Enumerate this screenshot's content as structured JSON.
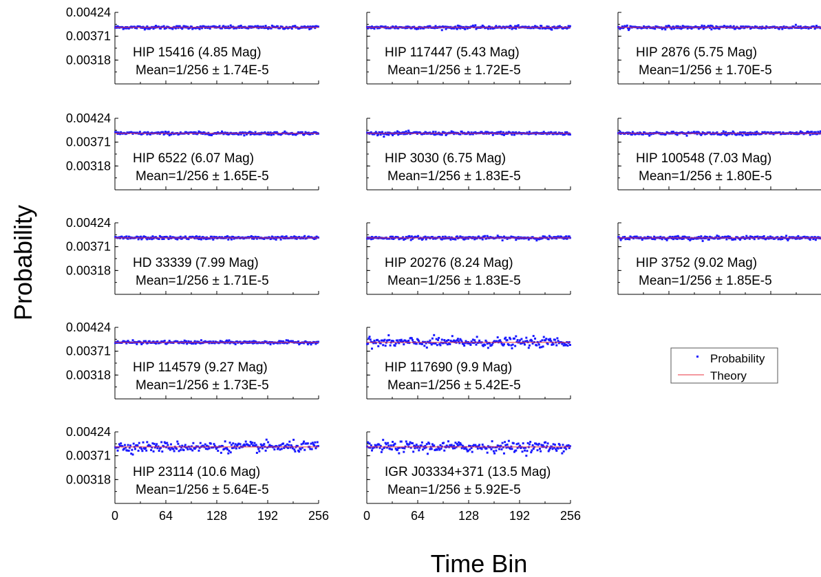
{
  "figure": {
    "ylabel": "Probability",
    "xlabel": "Time Bin",
    "legend": {
      "placement": "right-middle",
      "items": [
        {
          "label": "Probability",
          "color": "#1a1aff",
          "marker": "dot"
        },
        {
          "label": "Theory",
          "color": "#e8323c",
          "marker": "line"
        }
      ]
    },
    "y_ticks": [
      "0.00424",
      "0.00371",
      "0.00318"
    ],
    "x_ticks": [
      "0",
      "64",
      "128",
      "192",
      "256"
    ]
  },
  "chart_data": [
    {
      "type": "scatter",
      "title": "HIP 15416 (4.85 Mag)",
      "subtitle": "Mean=1/256 ± 1.74E-5",
      "mean": 0.00390625,
      "spread": 1.74e-05,
      "xlim": [
        0,
        256
      ],
      "ylim": [
        0.00265,
        0.00424
      ],
      "series": [
        {
          "name": "Probability"
        },
        {
          "name": "Theory",
          "value": 0.00390625
        }
      ]
    },
    {
      "type": "scatter",
      "title": "HIP 117447 (5.43 Mag)",
      "subtitle": "Mean=1/256 ± 1.72E-5",
      "mean": 0.00390625,
      "spread": 1.72e-05,
      "xlim": [
        0,
        256
      ],
      "ylim": [
        0.00265,
        0.00424
      ],
      "series": [
        {
          "name": "Probability"
        },
        {
          "name": "Theory",
          "value": 0.00390625
        }
      ]
    },
    {
      "type": "scatter",
      "title": "HIP 2876 (5.75 Mag)",
      "subtitle": "Mean=1/256 ± 1.70E-5",
      "mean": 0.00390625,
      "spread": 1.7e-05,
      "xlim": [
        0,
        256
      ],
      "ylim": [
        0.00265,
        0.00424
      ],
      "series": [
        {
          "name": "Probability"
        },
        {
          "name": "Theory",
          "value": 0.00390625
        }
      ]
    },
    {
      "type": "scatter",
      "title": "HIP 6522 (6.07 Mag)",
      "subtitle": "Mean=1/256 ± 1.65E-5",
      "mean": 0.00390625,
      "spread": 1.65e-05,
      "xlim": [
        0,
        256
      ],
      "ylim": [
        0.00265,
        0.00424
      ],
      "series": [
        {
          "name": "Probability"
        },
        {
          "name": "Theory",
          "value": 0.00390625
        }
      ]
    },
    {
      "type": "scatter",
      "title": "HIP 3030 (6.75 Mag)",
      "subtitle": "Mean=1/256 ± 1.83E-5",
      "mean": 0.00390625,
      "spread": 1.83e-05,
      "xlim": [
        0,
        256
      ],
      "ylim": [
        0.00265,
        0.00424
      ],
      "series": [
        {
          "name": "Probability"
        },
        {
          "name": "Theory",
          "value": 0.00390625
        }
      ]
    },
    {
      "type": "scatter",
      "title": "HIP 100548 (7.03 Mag)",
      "subtitle": "Mean=1/256 ± 1.80E-5",
      "mean": 0.00390625,
      "spread": 1.8e-05,
      "xlim": [
        0,
        256
      ],
      "ylim": [
        0.00265,
        0.00424
      ],
      "series": [
        {
          "name": "Probability"
        },
        {
          "name": "Theory",
          "value": 0.00390625
        }
      ]
    },
    {
      "type": "scatter",
      "title": "HD 33339 (7.99 Mag)",
      "subtitle": "Mean=1/256 ± 1.71E-5",
      "mean": 0.00390625,
      "spread": 1.71e-05,
      "xlim": [
        0,
        256
      ],
      "ylim": [
        0.00265,
        0.00424
      ],
      "series": [
        {
          "name": "Probability"
        },
        {
          "name": "Theory",
          "value": 0.00390625
        }
      ]
    },
    {
      "type": "scatter",
      "title": "HIP 20276 (8.24 Mag)",
      "subtitle": "Mean=1/256 ± 1.83E-5",
      "mean": 0.00390625,
      "spread": 1.83e-05,
      "xlim": [
        0,
        256
      ],
      "ylim": [
        0.00265,
        0.00424
      ],
      "series": [
        {
          "name": "Probability"
        },
        {
          "name": "Theory",
          "value": 0.00390625
        }
      ]
    },
    {
      "type": "scatter",
      "title": "HIP 3752 (9.02 Mag)",
      "subtitle": "Mean=1/256 ± 1.85E-5",
      "mean": 0.00390625,
      "spread": 1.85e-05,
      "xlim": [
        0,
        256
      ],
      "ylim": [
        0.00265,
        0.00424
      ],
      "series": [
        {
          "name": "Probability"
        },
        {
          "name": "Theory",
          "value": 0.00390625
        }
      ]
    },
    {
      "type": "scatter",
      "title": "HIP 114579 (9.27 Mag)",
      "subtitle": "Mean=1/256 ± 1.73E-5",
      "mean": 0.00390625,
      "spread": 1.73e-05,
      "xlim": [
        0,
        256
      ],
      "ylim": [
        0.00265,
        0.00424
      ],
      "series": [
        {
          "name": "Probability"
        },
        {
          "name": "Theory",
          "value": 0.00390625
        }
      ]
    },
    {
      "type": "scatter",
      "title": "HIP 117690 (9.9 Mag)",
      "subtitle": "Mean=1/256 ± 5.42E-5",
      "mean": 0.00390625,
      "spread": 5.42e-05,
      "xlim": [
        0,
        256
      ],
      "ylim": [
        0.00265,
        0.00424
      ],
      "series": [
        {
          "name": "Probability"
        },
        {
          "name": "Theory",
          "value": 0.00390625
        }
      ]
    },
    {
      "type": "scatter",
      "title": "HIP 23114 (10.6 Mag)",
      "subtitle": "Mean=1/256 ± 5.64E-5",
      "mean": 0.00390625,
      "spread": 5.64e-05,
      "xlim": [
        0,
        256
      ],
      "ylim": [
        0.00265,
        0.00424
      ],
      "series": [
        {
          "name": "Probability"
        },
        {
          "name": "Theory",
          "value": 0.00390625
        }
      ]
    },
    {
      "type": "scatter",
      "title": "IGR J03334+371 (13.5 Mag)",
      "subtitle": "Mean=1/256 ± 5.92E-5",
      "mean": 0.00390625,
      "spread": 5.92e-05,
      "xlim": [
        0,
        256
      ],
      "ylim": [
        0.00265,
        0.00424
      ],
      "series": [
        {
          "name": "Probability"
        },
        {
          "name": "Theory",
          "value": 0.00390625
        }
      ]
    }
  ]
}
